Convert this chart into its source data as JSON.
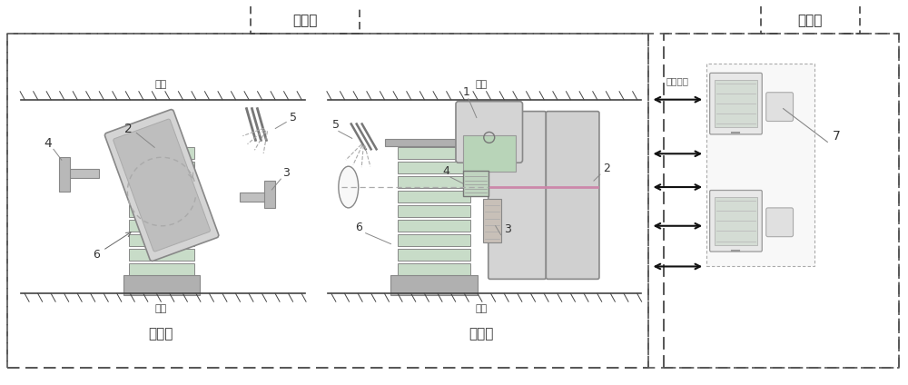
{
  "bg_color": "#ffffff",
  "label_zhiliao": "治疗室",
  "label_kongzhi": "控制室",
  "label_zhengshi": "正视图",
  "label_ceshi": "侧视图",
  "label_wuding": "屋顶",
  "label_dimian": "地面",
  "label_shuju": "数据传输",
  "dash_color": "#555555",
  "line_color": "#444444",
  "gray_fill": "#cccccc",
  "light_gray": "#e0e0e0",
  "green_fill": "#c8dcc8",
  "dark_gray": "#999999"
}
